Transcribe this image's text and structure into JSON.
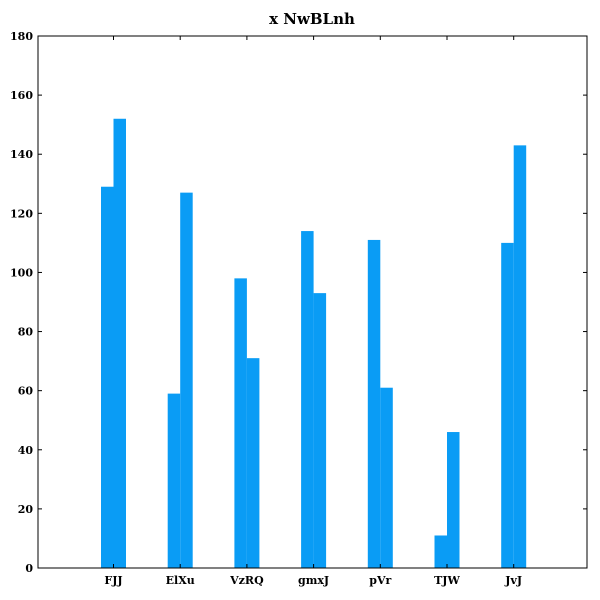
{
  "chart_data": {
    "type": "bar",
    "title": "x NwBLnh",
    "xlabel": "",
    "ylabel": "",
    "categories": [
      "FJJ",
      "ElXu",
      "VzRQ",
      "gmxJ",
      "pVr",
      "TJW",
      "JvJ"
    ],
    "series": [
      {
        "values": [
          129,
          59,
          98,
          114,
          111,
          11,
          110
        ]
      },
      {
        "values": [
          152,
          127,
          71,
          93,
          61,
          46,
          143
        ]
      }
    ],
    "ylim": [
      0,
      180
    ],
    "yticks": [
      0,
      20,
      40,
      60,
      80,
      100,
      120,
      140,
      160,
      180
    ],
    "grid": false,
    "legend": "none",
    "colors": {
      "bar": "#0a9cf5",
      "axis": "#000000",
      "background": "#ffffff"
    }
  }
}
